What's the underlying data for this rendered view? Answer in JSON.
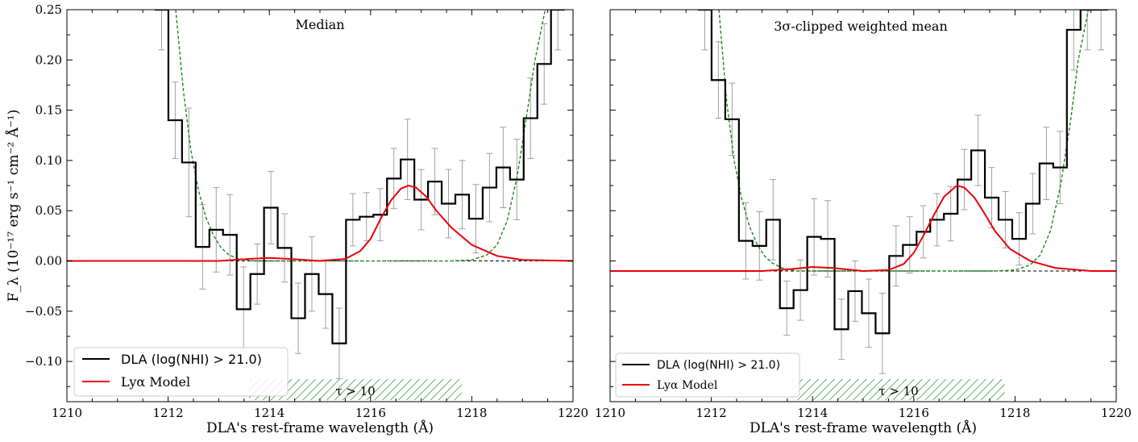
{
  "figure": {
    "ylabel": "F_λ (10⁻¹⁷ erg s⁻¹ cm⁻² Å⁻¹)",
    "xlabel": "DLA's rest-frame wavelength (Å)"
  },
  "colors": {
    "stack": "#000000",
    "model": "#e8000b",
    "continuum": "#1a8a1a",
    "errorbar": "#a0a0a0",
    "hatch": "#3a9a3a"
  },
  "chart_data": [
    {
      "type": "line",
      "title": "Median",
      "xlim": [
        1210,
        1220
      ],
      "ylim": [
        -0.14,
        0.25
      ],
      "xticks": [
        1210,
        1212,
        1214,
        1216,
        1218,
        1220
      ],
      "xtick_labels": [
        "1210",
        "1212",
        "1214",
        "1216",
        "1218",
        "1220"
      ],
      "yticks": [
        -0.1,
        -0.05,
        0.0,
        0.05,
        0.1,
        0.15,
        0.2,
        0.25
      ],
      "ytick_labels": [
        "−0.10",
        "−0.05",
        "0.00",
        "0.05",
        "0.10",
        "0.15",
        "0.20",
        "0.25"
      ],
      "zero_level": 0.0,
      "bin_width": 0.27,
      "stack": {
        "name": "DLA (log(NHI) > 21.0)",
        "x": [
          1211.87,
          1212.14,
          1212.41,
          1212.68,
          1212.95,
          1213.22,
          1213.49,
          1213.76,
          1214.03,
          1214.3,
          1214.57,
          1214.84,
          1215.11,
          1215.38,
          1215.65,
          1215.92,
          1216.19,
          1216.46,
          1216.73,
          1217.0,
          1217.27,
          1217.54,
          1217.81,
          1218.08,
          1218.35,
          1218.62,
          1218.89,
          1219.16,
          1219.43,
          1219.7
        ],
        "y": [
          0.25,
          0.14,
          0.098,
          0.014,
          0.031,
          0.026,
          -0.048,
          -0.013,
          0.053,
          0.013,
          -0.057,
          -0.013,
          -0.033,
          -0.082,
          0.041,
          0.044,
          0.046,
          0.082,
          0.101,
          0.061,
          0.079,
          0.057,
          0.066,
          0.042,
          0.073,
          0.093,
          0.081,
          0.142,
          0.196,
          0.25
        ],
        "err": [
          0.04,
          0.038,
          0.054,
          0.042,
          0.042,
          0.04,
          0.042,
          0.03,
          0.036,
          0.034,
          0.035,
          0.037,
          0.034,
          0.035,
          0.026,
          0.024,
          0.026,
          0.03,
          0.04,
          0.03,
          0.033,
          0.034,
          0.034,
          0.034,
          0.034,
          0.04,
          0.04,
          0.04,
          0.04,
          0.04
        ]
      },
      "continuum": {
        "name": "",
        "x": [
          1212.15,
          1212.3,
          1212.45,
          1212.6,
          1212.75,
          1212.9,
          1213.05,
          1213.2,
          1213.4,
          1213.7,
          1214.0,
          1215.0,
          1216.0,
          1217.0,
          1217.6,
          1218.0,
          1218.3,
          1218.5,
          1218.7,
          1218.9,
          1219.1,
          1219.25,
          1219.45
        ],
        "y": [
          0.25,
          0.17,
          0.11,
          0.07,
          0.043,
          0.025,
          0.013,
          0.006,
          0.002,
          0.0,
          0.0,
          0.0,
          0.0,
          0.0,
          0.0,
          0.001,
          0.006,
          0.016,
          0.04,
          0.085,
          0.15,
          0.2,
          0.25
        ]
      },
      "model": {
        "name": "Lyα Model",
        "x": [
          1210.0,
          1213.0,
          1213.6,
          1214.0,
          1214.4,
          1215.0,
          1215.5,
          1215.8,
          1216.0,
          1216.2,
          1216.4,
          1216.6,
          1216.75,
          1216.9,
          1217.1,
          1217.3,
          1217.6,
          1218.0,
          1218.5,
          1219.0,
          1220.0
        ],
        "y": [
          0.0,
          0.0,
          0.002,
          0.003,
          0.002,
          0.0,
          0.002,
          0.01,
          0.022,
          0.042,
          0.06,
          0.072,
          0.075,
          0.073,
          0.064,
          0.05,
          0.033,
          0.016,
          0.005,
          0.001,
          0.0
        ]
      },
      "tau_region": {
        "x": [
          1213.6,
          1217.8
        ],
        "label": "τ > 10"
      },
      "legend": {
        "placement": "lower-left",
        "entries": [
          "DLA (log(NHI) > 21.0)",
          "Lyα Model"
        ]
      }
    },
    {
      "type": "line",
      "title": "3σ-clipped weighted mean",
      "xlim": [
        1210,
        1220
      ],
      "ylim": [
        -0.14,
        0.25
      ],
      "xticks": [
        1210,
        1212,
        1214,
        1216,
        1218,
        1220
      ],
      "xtick_labels": [
        "1210",
        "1212",
        "1214",
        "1216",
        "1218",
        "1220"
      ],
      "yticks": [],
      "ytick_labels": [],
      "zero_level": -0.01,
      "bin_width": 0.27,
      "stack": {
        "name": "DLA (log(NHI) > 21.0)",
        "x": [
          1211.87,
          1212.14,
          1212.41,
          1212.68,
          1212.95,
          1213.22,
          1213.49,
          1213.76,
          1214.03,
          1214.3,
          1214.57,
          1214.84,
          1215.11,
          1215.38,
          1215.65,
          1215.92,
          1216.19,
          1216.46,
          1216.73,
          1217.0,
          1217.27,
          1217.54,
          1217.81,
          1218.08,
          1218.35,
          1218.62,
          1218.89,
          1219.16,
          1219.43,
          1219.7
        ],
        "y": [
          0.25,
          0.18,
          0.141,
          0.02,
          0.015,
          0.041,
          -0.047,
          -0.029,
          0.024,
          0.022,
          -0.068,
          -0.03,
          -0.052,
          -0.072,
          0.005,
          0.016,
          0.029,
          0.041,
          0.047,
          0.081,
          0.11,
          0.063,
          0.041,
          0.022,
          0.057,
          0.097,
          0.093,
          0.23,
          0.25,
          0.25
        ],
        "err": [
          0.04,
          0.038,
          0.036,
          0.038,
          0.034,
          0.04,
          0.027,
          0.03,
          0.038,
          0.038,
          0.03,
          0.03,
          0.034,
          0.04,
          0.03,
          0.028,
          0.026,
          0.026,
          0.027,
          0.03,
          0.035,
          0.03,
          0.028,
          0.026,
          0.03,
          0.036,
          0.036,
          0.04,
          0.04,
          0.04
        ]
      },
      "continuum": {
        "name": "",
        "x": [
          1212.15,
          1212.3,
          1212.45,
          1212.6,
          1212.75,
          1212.9,
          1213.05,
          1213.2,
          1213.4,
          1213.7,
          1214.0,
          1215.0,
          1216.0,
          1217.0,
          1217.6,
          1218.0,
          1218.3,
          1218.5,
          1218.7,
          1218.9,
          1219.1,
          1219.25,
          1219.45
        ],
        "y": [
          0.25,
          0.16,
          0.1,
          0.062,
          0.035,
          0.017,
          0.005,
          -0.002,
          -0.007,
          -0.01,
          -0.01,
          -0.01,
          -0.01,
          -0.01,
          -0.01,
          -0.009,
          -0.004,
          0.006,
          0.03,
          0.075,
          0.14,
          0.2,
          0.25
        ]
      },
      "model": {
        "name": "Lyα Model",
        "x": [
          1210.0,
          1213.0,
          1213.6,
          1214.0,
          1214.4,
          1215.0,
          1215.5,
          1215.8,
          1216.0,
          1216.2,
          1216.4,
          1216.6,
          1216.85,
          1217.0,
          1217.2,
          1217.4,
          1217.6,
          1217.9,
          1218.3,
          1218.8,
          1219.5,
          1220.0
        ],
        "y": [
          -0.01,
          -0.01,
          -0.008,
          -0.006,
          -0.007,
          -0.01,
          -0.009,
          -0.003,
          0.008,
          0.026,
          0.046,
          0.064,
          0.075,
          0.073,
          0.063,
          0.047,
          0.03,
          0.012,
          0.0,
          -0.007,
          -0.01,
          -0.01
        ]
      },
      "tau_region": {
        "x": [
          1213.6,
          1217.8
        ],
        "label": "τ > 10"
      },
      "legend": {
        "placement": "lower-left",
        "entries": [
          "DLA (log(NHI) > 21.0)",
          "Lyα Model"
        ]
      }
    }
  ]
}
